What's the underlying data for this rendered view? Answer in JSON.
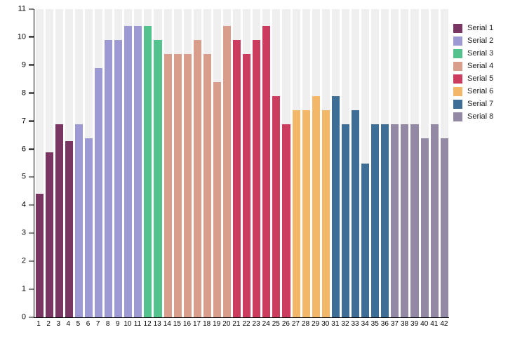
{
  "chart_data": {
    "type": "bar",
    "title": "",
    "xlabel": "",
    "ylabel": "",
    "ylim": [
      0,
      11
    ],
    "y_ticks": [
      "0",
      "1",
      "2",
      "3",
      "4",
      "5",
      "6",
      "7",
      "8",
      "9",
      "10",
      "11"
    ],
    "grid": "background-stripes",
    "legend_position": "right",
    "categories": [
      "1",
      "2",
      "3",
      "4",
      "5",
      "6",
      "7",
      "8",
      "9",
      "10",
      "11",
      "12",
      "13",
      "14",
      "15",
      "16",
      "17",
      "18",
      "19",
      "20",
      "21",
      "22",
      "23",
      "24",
      "25",
      "26",
      "27",
      "28",
      "29",
      "30",
      "31",
      "32",
      "33",
      "34",
      "35",
      "36",
      "37",
      "38",
      "39",
      "40",
      "41",
      "42"
    ],
    "series": [
      {
        "name": "Serial 1",
        "color": "#7A3663",
        "values": [
          4.4,
          5.9,
          6.9,
          6.3
        ]
      },
      {
        "name": "Serial 2",
        "color": "#9D9AD3",
        "values": [
          6.9,
          6.4,
          8.9,
          9.9,
          9.9,
          10.4,
          10.4
        ]
      },
      {
        "name": "Serial 3",
        "color": "#53C28C",
        "values": [
          10.4,
          9.9
        ]
      },
      {
        "name": "Serial 4",
        "color": "#D99E8B",
        "values": [
          9.4,
          9.4,
          9.4,
          9.9,
          9.4,
          8.4,
          10.4
        ]
      },
      {
        "name": "Serial 5",
        "color": "#CB3C5F",
        "values": [
          9.9,
          9.4,
          9.9,
          10.4,
          7.9,
          6.9
        ]
      },
      {
        "name": "Serial 6",
        "color": "#F2B768",
        "values": [
          7.4,
          7.4,
          7.9,
          7.4
        ]
      },
      {
        "name": "Serial 7",
        "color": "#3E6D96",
        "values": [
          7.9,
          6.9,
          7.4,
          5.5,
          6.9,
          6.9
        ]
      },
      {
        "name": "Serial 8",
        "color": "#9489A4",
        "values": [
          6.9,
          6.9,
          6.9,
          6.4,
          6.9,
          6.4
        ]
      }
    ],
    "colors": {
      "stripe_background": "#EFEFEF",
      "axis": "#000000",
      "page_background": "#FFFFFF"
    }
  }
}
